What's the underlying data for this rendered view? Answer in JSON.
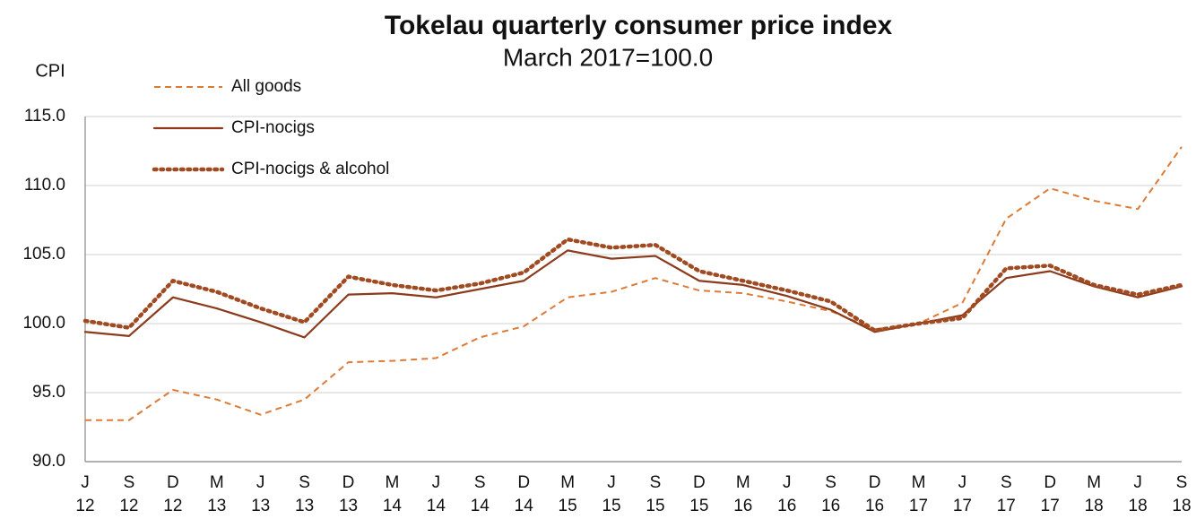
{
  "chart_data": {
    "type": "line",
    "title": "Tokelau quarterly consumer price index",
    "subtitle": "March 2017=100.0",
    "y_label": "CPI",
    "categories": [
      [
        "J",
        "12"
      ],
      [
        "S",
        "12"
      ],
      [
        "D",
        "12"
      ],
      [
        "M",
        "13"
      ],
      [
        "J",
        "13"
      ],
      [
        "S",
        "13"
      ],
      [
        "D",
        "13"
      ],
      [
        "M",
        "14"
      ],
      [
        "J",
        "14"
      ],
      [
        "S",
        "14"
      ],
      [
        "D",
        "14"
      ],
      [
        "M",
        "15"
      ],
      [
        "J",
        "15"
      ],
      [
        "S",
        "15"
      ],
      [
        "D",
        "15"
      ],
      [
        "M",
        "16"
      ],
      [
        "J",
        "16"
      ],
      [
        "S",
        "16"
      ],
      [
        "D",
        "16"
      ],
      [
        "M",
        "17"
      ],
      [
        "J",
        "17"
      ],
      [
        "S",
        "17"
      ],
      [
        "D",
        "17"
      ],
      [
        "M",
        "18"
      ],
      [
        "J",
        "18"
      ],
      [
        "S",
        "18"
      ]
    ],
    "series": [
      {
        "name": "All goods",
        "color": "#dd7a36",
        "style": "dashed",
        "values": [
          93.0,
          93.0,
          95.2,
          94.5,
          93.4,
          94.5,
          97.2,
          97.3,
          97.5,
          99.0,
          99.8,
          101.9,
          102.3,
          103.3,
          102.4,
          102.2,
          101.6,
          100.9,
          99.6,
          100.0,
          101.5,
          107.6,
          109.8,
          108.9,
          108.3,
          112.8
        ]
      },
      {
        "name": "CPI-nocigs",
        "color": "#8b3b1c",
        "style": "solid",
        "values": [
          99.4,
          99.1,
          101.9,
          101.1,
          100.1,
          99.0,
          102.1,
          102.2,
          101.9,
          102.5,
          103.1,
          105.3,
          104.7,
          104.9,
          103.1,
          102.8,
          102.0,
          101.0,
          99.4,
          100.0,
          100.6,
          103.3,
          103.8,
          102.7,
          101.9,
          102.7
        ]
      },
      {
        "name": "CPI-nocigs & alcohol",
        "color": "#a04a22",
        "style": "dotted",
        "values": [
          100.2,
          99.7,
          103.1,
          102.3,
          101.1,
          100.1,
          103.4,
          102.8,
          102.4,
          102.9,
          103.7,
          106.1,
          105.5,
          105.7,
          103.8,
          103.1,
          102.4,
          101.6,
          99.5,
          100.0,
          100.4,
          104.0,
          104.2,
          102.8,
          102.1,
          102.8
        ]
      }
    ],
    "ylim": [
      90,
      115
    ],
    "yticks": [
      {
        "value": 90,
        "label": "90.0"
      },
      {
        "value": 95,
        "label": "95.0"
      },
      {
        "value": 100,
        "label": "100.0"
      },
      {
        "value": 105,
        "label": "105.0"
      },
      {
        "value": 110,
        "label": "110.0"
      },
      {
        "value": 115,
        "label": "115.0"
      }
    ],
    "grid": true,
    "legend": "upper-left"
  }
}
